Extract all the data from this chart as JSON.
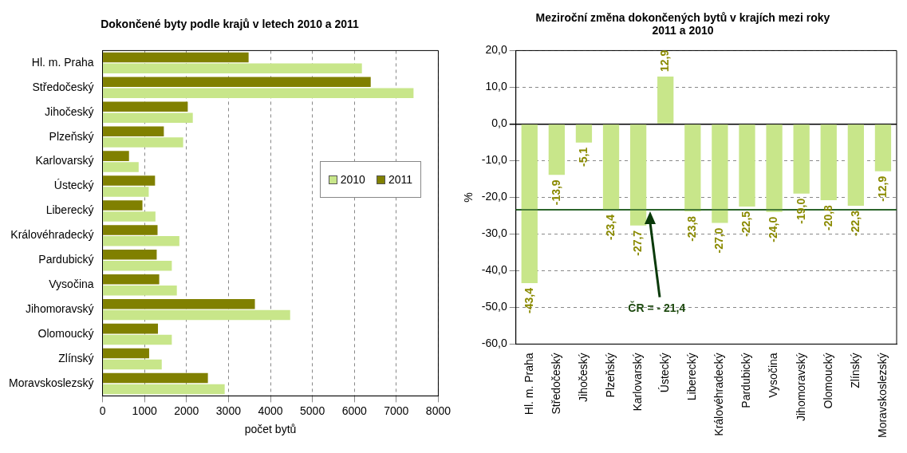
{
  "chart_data": [
    {
      "type": "bar",
      "title": "Dokončené byty podle krajů v letech 2010 a 2011",
      "orientation": "horizontal",
      "xlabel": "počet bytů",
      "categories": [
        "Hl. m. Praha",
        "Středočeský",
        "Jihočeský",
        "Plzeňský",
        "Karlovarský",
        "Ústecký",
        "Liberecký",
        "Královéhradecký",
        "Pardubický",
        "Vysočina",
        "Jihomoravský",
        "Olomoucký",
        "Zlínský",
        "Moravskoslezský"
      ],
      "series": [
        {
          "name": "2010",
          "color": "#c8e68a",
          "values": [
            6180,
            7410,
            2150,
            1920,
            860,
            1100,
            1260,
            1830,
            1650,
            1770,
            4470,
            1650,
            1410,
            2910
          ]
        },
        {
          "name": "2011",
          "color": "#808000",
          "values": [
            3480,
            6390,
            2030,
            1460,
            630,
            1250,
            950,
            1310,
            1290,
            1350,
            3630,
            1320,
            1110,
            2510
          ]
        }
      ],
      "xlim": [
        0,
        8000
      ],
      "xticks": [
        0,
        1000,
        2000,
        3000,
        4000,
        5000,
        6000,
        7000,
        8000
      ],
      "grid": "x",
      "legend": "right"
    },
    {
      "type": "bar",
      "title": "Meziroční změna dokončených bytů v krajích mezi roky 2011 a 2010",
      "ylabel": "%",
      "categories": [
        "Hl. m. Praha",
        "Středočeský",
        "Jihočeský",
        "Plzeňský",
        "Karlovarský",
        "Ústecký",
        "Liberecký",
        "Královéhradecký",
        "Pardubický",
        "Vysočina",
        "Jihomoravský",
        "Olomoucký",
        "Zlínský",
        "Moravskoslezský"
      ],
      "values": [
        -43.4,
        -13.9,
        -5.1,
        -23.4,
        -27.7,
        12.9,
        -23.8,
        -27.0,
        -22.5,
        -24.0,
        -19.0,
        -20.8,
        -22.3,
        -12.9
      ],
      "color": "#c8e68a",
      "value_labels": [
        "-43,4",
        "-13,9",
        "-5,1",
        "-23,4",
        "-27,7",
        "12,9",
        "-23,8",
        "-27,0",
        "-22,5",
        "-24,0",
        "-19,0",
        "-20,8",
        "-22,3",
        "-12,9"
      ],
      "ylim": [
        -60,
        20
      ],
      "yticks": [
        {
          "value": -60,
          "label": "-60,0"
        },
        {
          "value": -50,
          "label": "-50,0"
        },
        {
          "value": -40,
          "label": "-40,0"
        },
        {
          "value": -30,
          "label": "-30,0"
        },
        {
          "value": -20,
          "label": "-20,0"
        },
        {
          "value": -10,
          "label": "-10,0"
        },
        {
          "value": 0,
          "label": "0,0"
        },
        {
          "value": 10,
          "label": "10,0"
        },
        {
          "value": 20,
          "label": "20,0"
        }
      ],
      "grid": "y",
      "ref_lines": [
        {
          "axis": "y",
          "value": -23.4,
          "color": "#1e5a1e"
        }
      ],
      "annotations": [
        "ČR = - 21,4"
      ]
    }
  ]
}
